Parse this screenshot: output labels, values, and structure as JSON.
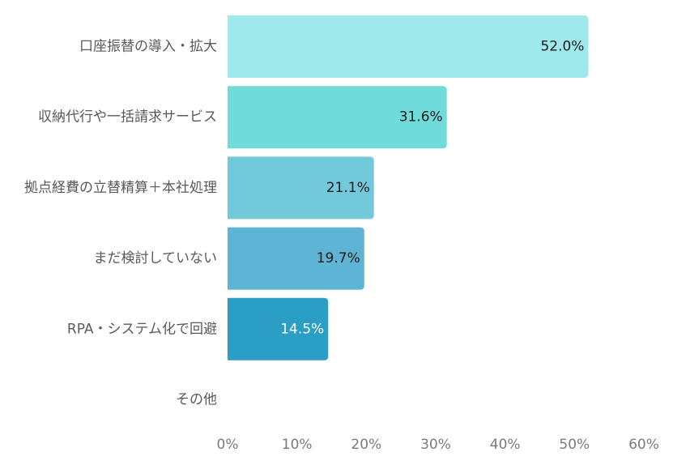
{
  "chart_data": {
    "type": "bar",
    "orientation": "horizontal",
    "categories": [
      "口座振替の導入・拡大",
      "収納代行や一括請求サービス",
      "拠点経費の立替精算＋本社処理",
      "まだ検討していない",
      "RPA・システム化で回避",
      "その他"
    ],
    "values": [
      52.0,
      31.6,
      21.1,
      19.7,
      14.5,
      0
    ],
    "data_labels": [
      "52.0%",
      "31.6%",
      "21.1%",
      "19.7%",
      "14.5%",
      ""
    ],
    "bar_colors": [
      "#9ee9ec",
      "#6fdbdb",
      "#72c9da",
      "#5eb4d4",
      "#2a9ec5",
      "#2a9ec5"
    ],
    "label_colors": [
      "#1a1a1a",
      "#1a1a1a",
      "#1a1a1a",
      "#1a1a1a",
      "#ffffff",
      "#ffffff"
    ],
    "x_ticks": [
      "0%",
      "10%",
      "20%",
      "30%",
      "40%",
      "50%",
      "60%"
    ],
    "xlim": [
      0,
      60
    ],
    "grid": false,
    "legend": "none",
    "title": "",
    "xlabel": "",
    "ylabel": ""
  }
}
